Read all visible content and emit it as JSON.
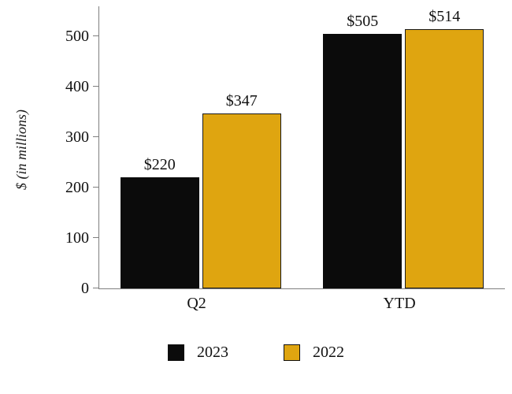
{
  "chart_data": {
    "type": "bar",
    "title": "",
    "categories": [
      "Q2",
      "YTD"
    ],
    "series": [
      {
        "name": "2023",
        "values": [
          220,
          505
        ],
        "color": "#0b0b0b",
        "border": "#0b0b0b"
      },
      {
        "name": "2022",
        "values": [
          347,
          514
        ],
        "color": "#DFA510",
        "border": "#1a1a1a"
      }
    ],
    "value_prefix": "$",
    "xlabel": "",
    "ylabel": "$ (in millions)",
    "ylim": [
      0,
      550
    ],
    "yticks": [
      0,
      100,
      200,
      300,
      400,
      500
    ],
    "grid": false,
    "legend_position": "bottom"
  }
}
